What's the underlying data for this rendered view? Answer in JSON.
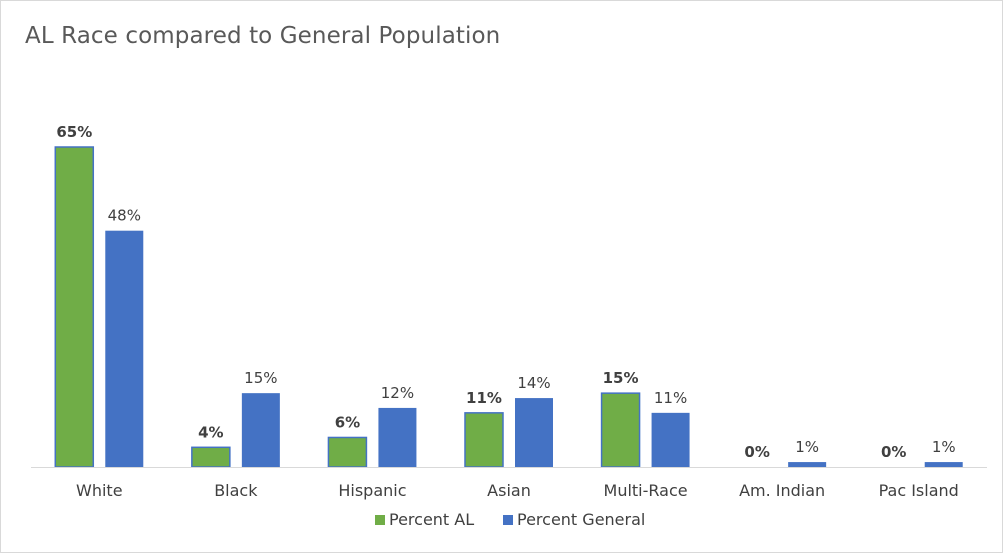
{
  "chart_data": {
    "type": "bar",
    "title": "AL Race compared to General Population",
    "categories": [
      "White",
      "Black",
      "Hispanic",
      "Asian",
      "Multi-Race",
      "Am. Indian",
      "Pac Island"
    ],
    "series": [
      {
        "name": "Percent AL",
        "values": [
          65,
          4,
          6,
          11,
          15,
          0,
          0
        ],
        "labels": [
          "65%",
          "4%",
          "6%",
          "11%",
          "15%",
          "0%",
          "0%"
        ],
        "color": "#70ad47",
        "border": "#4472c4"
      },
      {
        "name": "Percent General",
        "values": [
          48,
          15,
          12,
          14,
          11,
          1,
          1
        ],
        "labels": [
          "48%",
          "15%",
          "12%",
          "14%",
          "11%",
          "1%",
          "1%"
        ],
        "color": "#4472c4"
      }
    ],
    "ylim": [
      0,
      65
    ],
    "grid": false,
    "legend": "bottom",
    "axis_color": "#d9d9d9"
  }
}
